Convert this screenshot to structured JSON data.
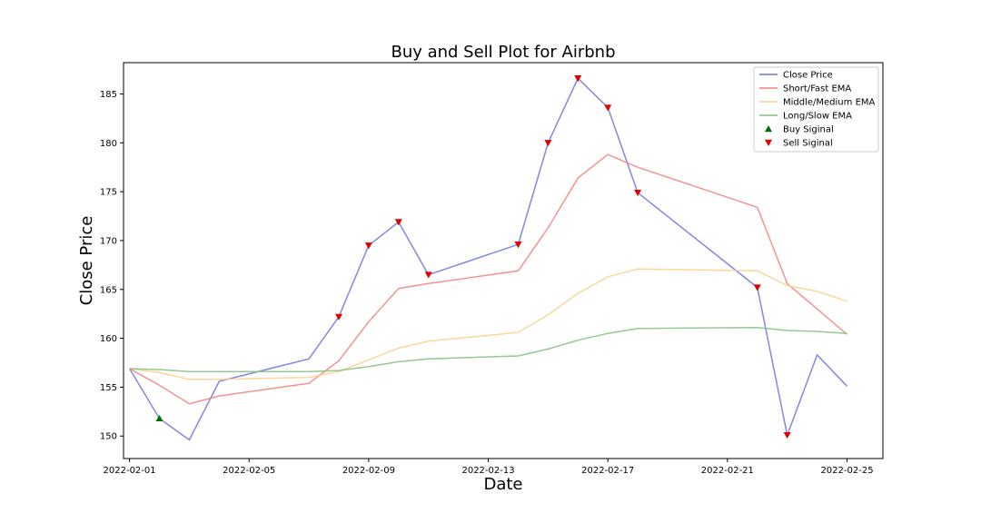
{
  "chart_data": {
    "type": "line",
    "title": "Buy and Sell Plot for Airbnb",
    "xlabel": "Date",
    "ylabel": "Close Price",
    "xlim": [
      "2022-01-31T19:12",
      "2022-02-26T04:48"
    ],
    "ylim": [
      147.7,
      188.2
    ],
    "x_ticks": [
      "2022-02-01",
      "2022-02-05",
      "2022-02-09",
      "2022-02-13",
      "2022-02-17",
      "2022-02-21",
      "2022-02-25"
    ],
    "y_ticks": [
      150,
      155,
      160,
      165,
      170,
      175,
      180,
      185
    ],
    "grid": false,
    "legend_position": "top-right",
    "x": [
      "2022-02-01",
      "2022-02-02",
      "2022-02-03",
      "2022-02-04",
      "2022-02-07",
      "2022-02-08",
      "2022-02-09",
      "2022-02-10",
      "2022-02-11",
      "2022-02-14",
      "2022-02-15",
      "2022-02-16",
      "2022-02-17",
      "2022-02-18",
      "2022-02-22",
      "2022-02-23",
      "2022-02-24",
      "2022-02-25"
    ],
    "series": [
      {
        "name": "Close Price",
        "color": "#7070e0",
        "values": [
          156.9,
          151.8,
          149.6,
          155.6,
          157.9,
          162.2,
          169.5,
          171.9,
          166.5,
          169.6,
          180.0,
          186.6,
          183.6,
          174.9,
          165.2,
          150.1,
          158.3,
          155.1
        ]
      },
      {
        "name": "Short/Fast EMA",
        "color": "#f08080",
        "values": [
          156.9,
          155.2,
          153.3,
          154.1,
          155.4,
          157.7,
          161.7,
          165.1,
          165.6,
          166.9,
          171.3,
          176.4,
          178.8,
          177.5,
          173.4,
          165.6,
          163.0,
          160.4
        ]
      },
      {
        "name": "Middle/Medium EMA",
        "color": "#fad08a",
        "values": [
          156.9,
          156.5,
          155.8,
          155.8,
          156.0,
          156.6,
          157.8,
          159.0,
          159.7,
          160.6,
          162.4,
          164.6,
          166.3,
          167.1,
          166.9,
          165.4,
          164.8,
          163.8
        ]
      },
      {
        "name": "Long/Slow EMA",
        "color": "#80c080",
        "values": [
          156.9,
          156.8,
          156.6,
          156.6,
          156.6,
          156.7,
          157.1,
          157.6,
          157.9,
          158.2,
          158.9,
          159.8,
          160.5,
          161.0,
          161.1,
          160.8,
          160.7,
          160.5
        ]
      }
    ],
    "buy_signals": [
      {
        "x": "2022-02-02",
        "y": 151.8
      }
    ],
    "sell_signals": [
      {
        "x": "2022-02-08",
        "y": 162.2
      },
      {
        "x": "2022-02-09",
        "y": 169.5
      },
      {
        "x": "2022-02-10",
        "y": 171.9
      },
      {
        "x": "2022-02-11",
        "y": 166.5
      },
      {
        "x": "2022-02-14",
        "y": 169.6
      },
      {
        "x": "2022-02-15",
        "y": 180.0
      },
      {
        "x": "2022-02-16",
        "y": 186.6
      },
      {
        "x": "2022-02-17",
        "y": 183.6
      },
      {
        "x": "2022-02-18",
        "y": 174.9
      },
      {
        "x": "2022-02-22",
        "y": 165.2
      },
      {
        "x": "2022-02-23",
        "y": 150.1
      }
    ],
    "legend": [
      {
        "label": "Close Price",
        "kind": "line",
        "color": "#7070e0"
      },
      {
        "label": "Short/Fast EMA",
        "kind": "line",
        "color": "#f08080"
      },
      {
        "label": "Middle/Medium EMA",
        "kind": "line",
        "color": "#fad08a"
      },
      {
        "label": "Long/Slow EMA",
        "kind": "line",
        "color": "#80c080"
      },
      {
        "label": "Buy Siginal",
        "kind": "up-triangle",
        "color": "#007000"
      },
      {
        "label": "Sell Siginal",
        "kind": "down-triangle",
        "color": "#e00000"
      }
    ]
  }
}
